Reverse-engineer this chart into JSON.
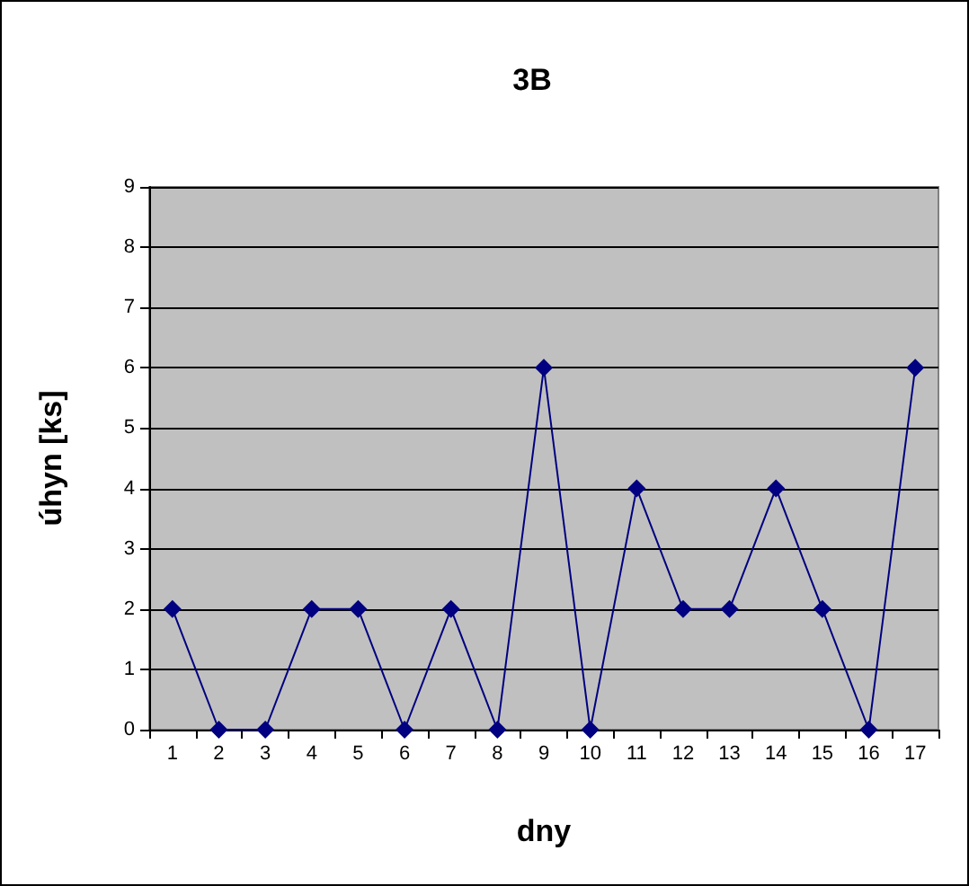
{
  "chart_data": {
    "type": "line",
    "title": "3B",
    "xlabel": "dny",
    "ylabel": "úhyn [ks]",
    "categories": [
      "1",
      "2",
      "3",
      "4",
      "5",
      "6",
      "7",
      "8",
      "9",
      "10",
      "11",
      "12",
      "13",
      "14",
      "15",
      "16",
      "17"
    ],
    "series": [
      {
        "color": "#000080",
        "values": [
          2,
          0,
          0,
          2,
          2,
          0,
          2,
          0,
          6,
          0,
          4,
          2,
          2,
          4,
          2,
          0,
          6
        ]
      }
    ],
    "ylim": [
      0,
      9
    ],
    "yticks": [
      0,
      1,
      2,
      3,
      4,
      5,
      6,
      7,
      8,
      9
    ],
    "grid": "y",
    "marker": "diamond",
    "line_style": "solid"
  }
}
